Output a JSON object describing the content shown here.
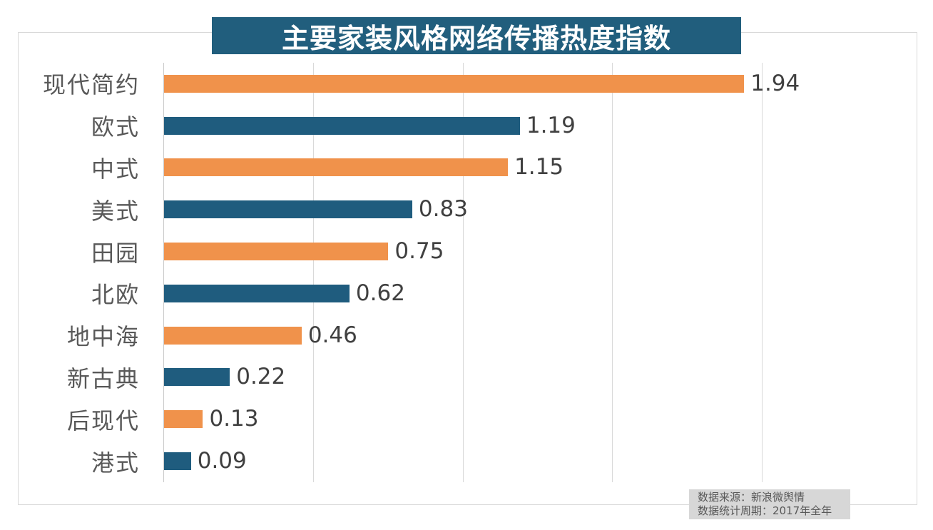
{
  "header": {
    "title": "主要家装风格网络传播热度指数",
    "title_bg_color": "#215e7d",
    "title_text_color": "#ffffff"
  },
  "footer": {
    "source": "数据来源：新浪微舆情",
    "period": "数据统计周期：2017年全年",
    "bg_color": "#d7d7d7",
    "text_color": "#595959"
  },
  "colors": {
    "bar_orange": "#f0924b",
    "bar_blue": "#1f5c7e",
    "gridline": "#d9d9d9",
    "axis_line": "#c9c9c9",
    "category_label": "#595959",
    "value_label": "#404040",
    "frame_border": "#d9d9d9"
  },
  "chart_data": {
    "type": "bar",
    "orientation": "horizontal",
    "title": "主要家装风格网络传播热度指数",
    "categories": [
      "现代简约",
      "欧式",
      "中式",
      "美式",
      "田园",
      "北欧",
      "地中海",
      "新古典",
      "后现代",
      "港式"
    ],
    "values": [
      1.94,
      1.19,
      1.15,
      0.83,
      0.75,
      0.62,
      0.46,
      0.22,
      0.13,
      0.09
    ],
    "value_labels": [
      "1.94",
      "1.19",
      "1.15",
      "0.83",
      "0.75",
      "0.62",
      "0.46",
      "0.22",
      "0.13",
      "0.09"
    ],
    "xlim": [
      0,
      2.5
    ],
    "gridline_interval": 0.5,
    "grid": true,
    "legend": false,
    "bar_colors_alternate": [
      "#f0924b",
      "#1f5c7e"
    ],
    "annotations": [
      "数据来源：新浪微舆情",
      "数据统计周期：2017年全年"
    ]
  }
}
